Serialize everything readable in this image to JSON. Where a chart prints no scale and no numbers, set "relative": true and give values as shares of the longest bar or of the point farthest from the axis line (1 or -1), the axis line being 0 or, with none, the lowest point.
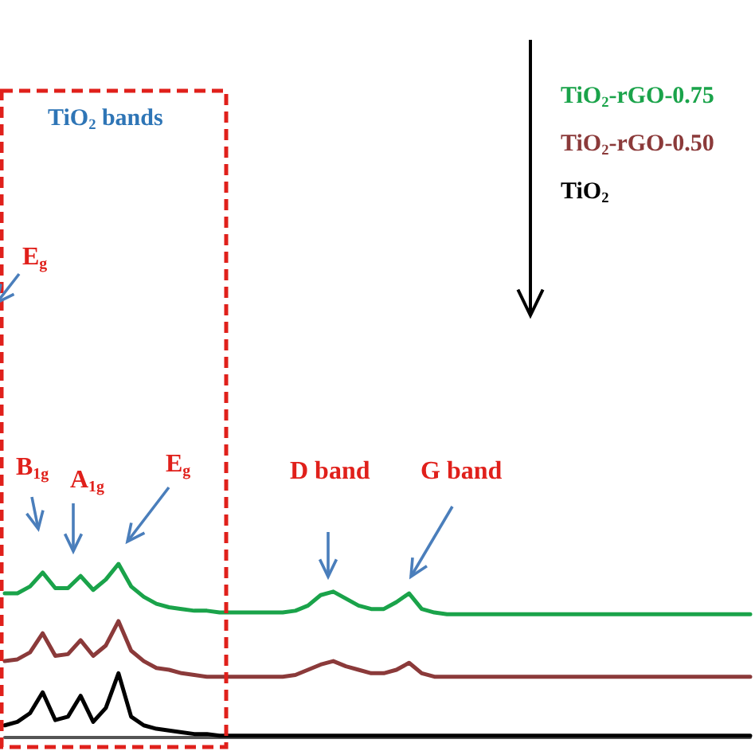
{
  "chart_data": {
    "type": "line",
    "relative": true,
    "categories": [
      null,
      null,
      null,
      null,
      null,
      null,
      null,
      null,
      null,
      null,
      null,
      null,
      null,
      null,
      null,
      null,
      null,
      null,
      null,
      null,
      null,
      null,
      null,
      null,
      null,
      null,
      null,
      null,
      null,
      null,
      null,
      null,
      null,
      null,
      null,
      null,
      null,
      null,
      null,
      null,
      null,
      null,
      null,
      null,
      null,
      null,
      null,
      null,
      null,
      null,
      null,
      null,
      null,
      null,
      null,
      null,
      null,
      null,
      null,
      null
    ],
    "series": [
      {
        "name": "TiO$_{2}$-rGO-0.75",
        "color": "#1aa34a",
        "values": [
          0.83,
          0.83,
          0.87,
          0.95,
          0.86,
          0.86,
          0.93,
          0.85,
          0.91,
          1,
          0.87,
          0.81,
          0.77,
          0.75,
          0.74,
          0.73,
          0.73,
          0.72,
          0.72,
          0.72,
          0.72,
          0.72,
          0.72,
          0.73,
          0.76,
          0.82,
          0.84,
          0.8,
          0.76,
          0.74,
          0.74,
          0.78,
          0.83,
          0.74,
          0.72,
          0.71,
          0.71,
          0.71,
          0.71,
          0.71,
          0.71,
          0.71,
          0.71,
          0.71,
          0.71,
          0.71,
          0.71,
          0.71,
          0.71,
          0.71,
          0.71,
          0.71,
          0.71,
          0.71,
          0.71,
          0.71,
          0.71,
          0.71,
          0.71,
          0.71
        ]
      },
      {
        "name": "TiO$_{2}$-rGO-0.50",
        "color": "#8b3a3a",
        "values": [
          0.44,
          0.45,
          0.49,
          0.6,
          0.47,
          0.48,
          0.56,
          0.47,
          0.53,
          0.67,
          0.5,
          0.44,
          0.4,
          0.39,
          0.37,
          0.36,
          0.35,
          0.35,
          0.35,
          0.35,
          0.35,
          0.35,
          0.35,
          0.36,
          0.39,
          0.42,
          0.44,
          0.41,
          0.39,
          0.37,
          0.37,
          0.39,
          0.43,
          0.37,
          0.35,
          0.35,
          0.35,
          0.35,
          0.35,
          0.35,
          0.35,
          0.35,
          0.35,
          0.35,
          0.35,
          0.35,
          0.35,
          0.35,
          0.35,
          0.35,
          0.35,
          0.35,
          0.35,
          0.35,
          0.35,
          0.35,
          0.35,
          0.35,
          0.35,
          0.35
        ]
      },
      {
        "name": "TiO$_{2}$",
        "color": "#000000",
        "values": [
          0.07,
          0.09,
          0.14,
          0.26,
          0.1,
          0.12,
          0.24,
          0.09,
          0.17,
          0.37,
          0.12,
          0.07,
          0.05,
          0.04,
          0.03,
          0.02,
          0.02,
          0.01,
          0.01,
          0.01,
          0.01,
          0.01,
          0.01,
          0.01,
          0.01,
          0.01,
          0.01,
          0.01,
          0.01,
          0.01,
          0.01,
          0.01,
          0.01,
          0.01,
          0.01,
          0.01,
          0.01,
          0.01,
          0.01,
          0.01,
          0.01,
          0.01,
          0.01,
          0.01,
          0.01,
          0.01,
          0.01,
          0.01,
          0.01,
          0.01,
          0.01,
          0.01,
          0.01,
          0.01,
          0.01,
          0.01,
          0.01,
          0.01,
          0.01,
          0.01
        ]
      }
    ],
    "annotations": [
      "TiO$_{2}$ bands",
      "E$_{g}$",
      "B$_{1g}$",
      "A$_{1g}$",
      "E$_{g}$",
      "D band",
      "G band"
    ],
    "grid": false,
    "legend": "top right",
    "marker": "none",
    "line_style": "solid"
  }
}
